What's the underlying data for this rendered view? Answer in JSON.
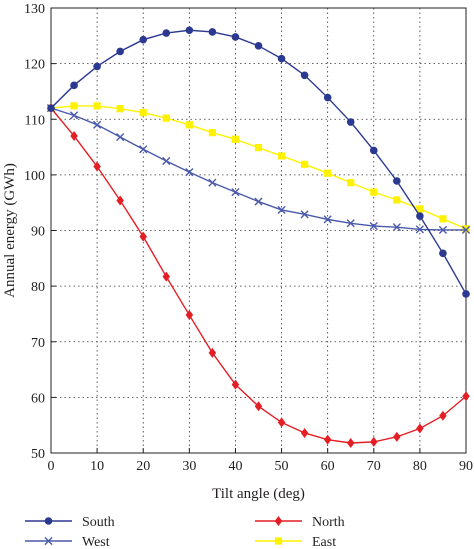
{
  "chart_data": {
    "type": "line",
    "title": "",
    "xlabel": "Tilt angle (deg)",
    "ylabel": "Annual energy (GWh)",
    "xlim": [
      0,
      90
    ],
    "ylim": [
      50,
      130
    ],
    "x_ticks": [
      0,
      10,
      20,
      30,
      40,
      50,
      60,
      70,
      80,
      90
    ],
    "y_ticks": [
      50,
      60,
      70,
      80,
      90,
      100,
      110,
      120,
      130
    ],
    "grid": true,
    "grid_style": "dotted",
    "legend_position": "bottom",
    "x": [
      0,
      5,
      10,
      15,
      20,
      25,
      30,
      35,
      40,
      45,
      50,
      55,
      60,
      65,
      70,
      75,
      80,
      85,
      90
    ],
    "series": [
      {
        "name": "South",
        "color": "#2b3990",
        "marker": "circle",
        "values": [
          112.0,
          116.1,
          119.5,
          122.2,
          124.3,
          125.5,
          126.0,
          125.7,
          124.8,
          123.2,
          120.9,
          117.9,
          113.9,
          109.5,
          104.4,
          98.9,
          92.6,
          85.9,
          78.6
        ]
      },
      {
        "name": "West",
        "color": "#4a5aab",
        "marker": "x",
        "values": [
          112.0,
          110.7,
          109.0,
          106.8,
          104.6,
          102.5,
          100.5,
          98.6,
          96.9,
          95.2,
          93.7,
          92.9,
          92.0,
          91.3,
          90.8,
          90.6,
          90.2,
          90.1,
          90.1
        ]
      },
      {
        "name": "North",
        "color": "#e31e24",
        "marker": "diamond",
        "values": [
          112.0,
          107.0,
          101.5,
          95.4,
          88.9,
          81.7,
          74.8,
          68.0,
          62.3,
          58.4,
          55.5,
          53.6,
          52.4,
          51.8,
          52.0,
          52.9,
          54.4,
          56.7,
          60.2
        ]
      },
      {
        "name": "East",
        "color": "#fff200",
        "marker": "square",
        "values": [
          112.0,
          112.4,
          112.4,
          111.9,
          111.2,
          110.2,
          109.0,
          107.6,
          106.4,
          104.9,
          103.4,
          101.9,
          100.3,
          98.6,
          96.9,
          95.5,
          93.9,
          92.1,
          90.3
        ]
      }
    ]
  }
}
